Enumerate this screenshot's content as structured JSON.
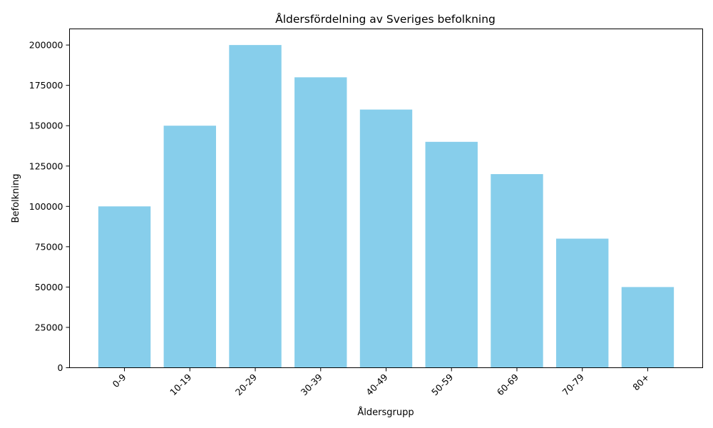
{
  "chart_data": {
    "type": "bar",
    "title": "Åldersfördelning av Sveriges befolkning",
    "xlabel": "Åldersgrupp",
    "ylabel": "Befolkning",
    "categories": [
      "0-9",
      "10-19",
      "20-29",
      "30-39",
      "40-49",
      "50-59",
      "60-69",
      "70-79",
      "80+"
    ],
    "values": [
      100000,
      150000,
      200000,
      180000,
      160000,
      140000,
      120000,
      80000,
      50000
    ],
    "ylim": [
      0,
      210000
    ],
    "yticks": [
      0,
      25000,
      50000,
      75000,
      100000,
      125000,
      150000,
      175000,
      200000
    ],
    "bar_color": "#87ceeb",
    "grid": false,
    "x_tick_rotation": "45-degree"
  }
}
